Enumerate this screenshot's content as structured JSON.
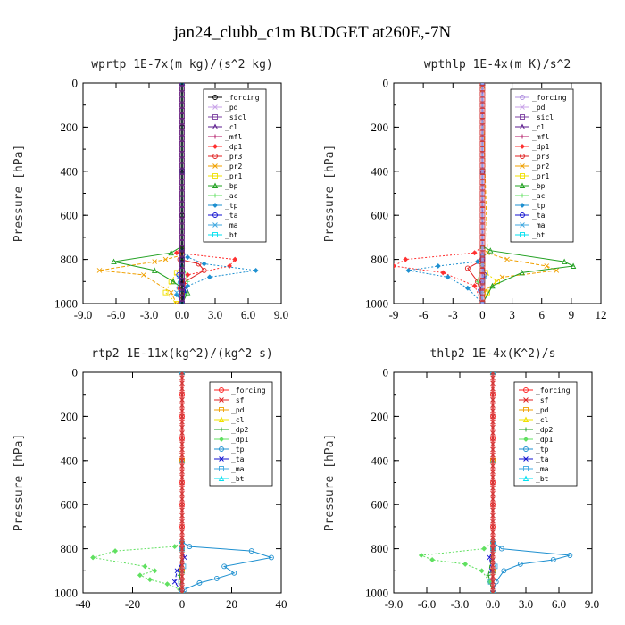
{
  "title": "jan24_clubb_c1m  BUDGET at260E,-7N",
  "chart_data": [
    {
      "type": "line",
      "title": "wprtp  1E-7x(m kg)/(s^2 kg)",
      "ylabel": "Pressure [hPa]",
      "xlim": [
        -9,
        9
      ],
      "ylim": [
        0,
        1000
      ],
      "xticks": [
        "-9.0",
        "-6.0",
        "-3.0",
        "0.0",
        "3.0",
        "6.0",
        "9.0"
      ],
      "yticks": [
        "0",
        "200",
        "400",
        "600",
        "800",
        "1000"
      ],
      "series": [
        {
          "name": "_forcing",
          "color": "#000000",
          "x": [
            0,
            0,
            0,
            0,
            0,
            0,
            0
          ],
          "y": [
            0,
            200,
            400,
            600,
            800,
            900,
            1000
          ]
        },
        {
          "name": "_pd",
          "color": "#c8a2e8",
          "x": [
            0,
            0,
            0,
            0,
            0
          ],
          "y": [
            0,
            400,
            800,
            900,
            1000
          ]
        },
        {
          "name": "_sicl",
          "color": "#7b3fa0",
          "x": [
            0,
            0,
            0,
            0,
            0
          ],
          "y": [
            0,
            400,
            800,
            900,
            1000
          ]
        },
        {
          "name": "_cl",
          "color": "#5a1a8c",
          "x": [
            0,
            0,
            0,
            0,
            0
          ],
          "y": [
            0,
            400,
            800,
            900,
            1000
          ]
        },
        {
          "name": "_mfl",
          "color": "#b01060",
          "x": [
            0,
            0,
            0,
            0,
            0
          ],
          "y": [
            0,
            400,
            800,
            900,
            1000
          ]
        },
        {
          "name": "_dp1",
          "color": "#ff3030",
          "x": [
            0,
            0,
            -0.5,
            4.8,
            4.3,
            0.5,
            -0.3,
            0
          ],
          "y": [
            0,
            740,
            770,
            800,
            830,
            870,
            930,
            1000
          ]
        },
        {
          "name": "_pr3",
          "color": "#e02020",
          "x": [
            0,
            0,
            -0.2,
            1.5,
            2.0,
            0.3,
            0
          ],
          "y": [
            0,
            760,
            800,
            820,
            850,
            900,
            1000
          ]
        },
        {
          "name": "_pr2",
          "color": "#f0a000",
          "x": [
            0,
            0,
            -1.5,
            -2.5,
            -7.5,
            -3.5,
            -1.0,
            -0.5
          ],
          "y": [
            0,
            780,
            800,
            810,
            850,
            870,
            950,
            1000
          ]
        },
        {
          "name": "_pr1",
          "color": "#f0e000",
          "x": [
            0,
            0,
            -0.5,
            -1.0,
            -1.5,
            -0.5
          ],
          "y": [
            0,
            820,
            860,
            900,
            950,
            1000
          ]
        },
        {
          "name": "_bp",
          "color": "#20a020",
          "x": [
            0,
            0,
            -1.0,
            -6.2,
            -2.5,
            -0.8,
            0.5,
            0
          ],
          "y": [
            0,
            740,
            770,
            810,
            850,
            900,
            950,
            1000
          ]
        },
        {
          "name": "_ac",
          "color": "#60e060",
          "x": [
            0,
            0,
            0.5,
            0.3,
            0
          ],
          "y": [
            0,
            800,
            900,
            950,
            1000
          ]
        },
        {
          "name": "_tp",
          "color": "#1e90d0",
          "x": [
            0,
            0,
            0.5,
            2.0,
            6.7,
            2.5,
            0.5,
            -0.5,
            0
          ],
          "y": [
            0,
            760,
            790,
            820,
            850,
            880,
            920,
            960,
            1000
          ]
        },
        {
          "name": "_ta",
          "color": "#1010d0",
          "x": [
            0,
            0,
            -0.3,
            0.3,
            0
          ],
          "y": [
            0,
            800,
            870,
            940,
            1000
          ]
        },
        {
          "name": "_ma",
          "color": "#40a8e0",
          "x": [
            0,
            0,
            -0.3,
            -0.5,
            0
          ],
          "y": [
            0,
            820,
            880,
            950,
            1000
          ]
        },
        {
          "name": "_bt",
          "color": "#00e0f0",
          "x": [
            0,
            0,
            0,
            0,
            0
          ],
          "y": [
            0,
            400,
            800,
            900,
            1000
          ]
        }
      ]
    },
    {
      "type": "line",
      "title": "wpthlp  1E-4x(m K)/s^2",
      "ylabel": "Pressure [hPa]",
      "xlim": [
        -9,
        12
      ],
      "ylim": [
        0,
        1000
      ],
      "xticks": [
        "-9",
        "-6",
        "-3",
        "0",
        "3",
        "6",
        "9",
        "12"
      ],
      "yticks": [
        "0",
        "200",
        "400",
        "600",
        "800",
        "1000"
      ],
      "series": [
        {
          "name": "_forcing",
          "color": "#b090e0",
          "x": [
            0,
            0,
            0,
            0,
            0
          ],
          "y": [
            0,
            400,
            800,
            900,
            1000
          ]
        },
        {
          "name": "_pd",
          "color": "#c8a2e8",
          "x": [
            0,
            0,
            0,
            0,
            0
          ],
          "y": [
            0,
            400,
            800,
            900,
            1000
          ]
        },
        {
          "name": "_sicl",
          "color": "#7b3fa0",
          "x": [
            0,
            0,
            0,
            0,
            0
          ],
          "y": [
            0,
            400,
            800,
            900,
            1000
          ]
        },
        {
          "name": "_cl",
          "color": "#5a1a8c",
          "x": [
            0,
            0,
            0,
            0,
            0
          ],
          "y": [
            0,
            400,
            800,
            900,
            1000
          ]
        },
        {
          "name": "_mfl",
          "color": "#b01060",
          "x": [
            0,
            0,
            0,
            0,
            0
          ],
          "y": [
            0,
            400,
            800,
            900,
            1000
          ]
        },
        {
          "name": "_dp1",
          "color": "#ff3030",
          "x": [
            0,
            0,
            -0.8,
            -7.8,
            -9.0,
            -4.0,
            -0.8,
            0
          ],
          "y": [
            0,
            740,
            770,
            800,
            830,
            860,
            920,
            1000
          ]
        },
        {
          "name": "_pr3",
          "color": "#e02020",
          "x": [
            0,
            0,
            -0.3,
            -1.5,
            -0.5,
            0
          ],
          "y": [
            0,
            780,
            810,
            840,
            900,
            1000
          ]
        },
        {
          "name": "_pr2",
          "color": "#f0a000",
          "x": [
            0,
            0,
            0.5,
            2.5,
            6.5,
            7.5,
            2.0,
            0.3,
            0
          ],
          "y": [
            0,
            30,
            770,
            800,
            830,
            850,
            880,
            940,
            1000
          ]
        },
        {
          "name": "_pr1",
          "color": "#f0e000",
          "x": [
            0,
            0,
            0.3,
            1.5,
            0.5,
            0
          ],
          "y": [
            0,
            820,
            860,
            900,
            950,
            1000
          ]
        },
        {
          "name": "_bp",
          "color": "#20a020",
          "x": [
            0,
            0,
            0.8,
            8.3,
            9.2,
            4.0,
            1.0,
            0
          ],
          "y": [
            0,
            740,
            760,
            810,
            830,
            860,
            920,
            1000
          ]
        },
        {
          "name": "_ac",
          "color": "#60e060",
          "x": [
            0,
            0,
            -0.5,
            0,
            0
          ],
          "y": [
            0,
            820,
            900,
            950,
            1000
          ]
        },
        {
          "name": "_tp",
          "color": "#1e90d0",
          "x": [
            0,
            0,
            -0.5,
            -4.5,
            -7.5,
            -3.5,
            -1.5,
            0
          ],
          "y": [
            0,
            780,
            810,
            830,
            850,
            880,
            930,
            1000
          ]
        },
        {
          "name": "_ta",
          "color": "#1010d0",
          "x": [
            0,
            0,
            0.2,
            -0.2,
            0
          ],
          "y": [
            0,
            800,
            870,
            940,
            1000
          ]
        },
        {
          "name": "_ma",
          "color": "#40a8e0",
          "x": [
            0,
            0,
            0.3,
            -0.2,
            0
          ],
          "y": [
            0,
            820,
            880,
            950,
            1000
          ]
        },
        {
          "name": "_bt",
          "color": "#00e0f0",
          "x": [
            0,
            0,
            0,
            0,
            0
          ],
          "y": [
            0,
            400,
            800,
            900,
            1000
          ]
        }
      ]
    },
    {
      "type": "line",
      "title": "rtp2  1E-11x(kg^2)/(kg^2 s)",
      "ylabel": "Pressure [hPa]",
      "xlim": [
        -40,
        40
      ],
      "ylim": [
        0,
        1000
      ],
      "xticks": [
        "-40",
        "-20",
        "0",
        "20",
        "40"
      ],
      "yticks": [
        "0",
        "200",
        "400",
        "600",
        "800",
        "1000"
      ],
      "series": [
        {
          "name": "_forcing",
          "color": "#ff2020",
          "x": [
            0,
            0,
            0,
            0,
            0,
            0,
            0,
            0,
            0,
            0,
            0
          ],
          "y": [
            0,
            100,
            200,
            300,
            400,
            500,
            600,
            700,
            800,
            900,
            1000
          ]
        },
        {
          "name": "_sf",
          "color": "#e02020",
          "x": [
            0,
            0,
            0,
            0,
            0,
            0,
            0,
            0,
            0,
            0,
            0
          ],
          "y": [
            0,
            100,
            200,
            300,
            400,
            500,
            600,
            700,
            800,
            900,
            1000
          ]
        },
        {
          "name": "_pd",
          "color": "#f0a000",
          "x": [
            0,
            0,
            0,
            0,
            0
          ],
          "y": [
            0,
            400,
            800,
            900,
            1000
          ]
        },
        {
          "name": "_cl",
          "color": "#f0e000",
          "x": [
            0,
            0,
            0,
            0,
            0
          ],
          "y": [
            0,
            400,
            800,
            900,
            1000
          ]
        },
        {
          "name": "_dp2",
          "color": "#20a020",
          "x": [
            0,
            0,
            -0.5,
            -1.0,
            -0.5,
            0
          ],
          "y": [
            0,
            800,
            860,
            920,
            960,
            1000
          ]
        },
        {
          "name": "_dp1",
          "color": "#60e060",
          "x": [
            0,
            0,
            -3,
            -27,
            -36,
            -15,
            -11,
            -17,
            -13,
            -6,
            -1,
            0
          ],
          "y": [
            0,
            770,
            790,
            810,
            840,
            880,
            900,
            920,
            940,
            960,
            985,
            1000
          ]
        },
        {
          "name": "_tp",
          "color": "#1e90d0",
          "x": [
            0,
            0,
            3,
            28,
            36,
            17,
            21,
            14,
            7,
            1,
            0
          ],
          "y": [
            0,
            770,
            790,
            810,
            840,
            880,
            910,
            935,
            955,
            985,
            1000
          ]
        },
        {
          "name": "_ta",
          "color": "#1010d0",
          "x": [
            0,
            0,
            1,
            -2,
            -3,
            0
          ],
          "y": [
            0,
            800,
            840,
            900,
            950,
            1000
          ]
        },
        {
          "name": "_ma",
          "color": "#40a8e0",
          "x": [
            0,
            0,
            0.5,
            -0.5,
            0
          ],
          "y": [
            0,
            800,
            880,
            950,
            1000
          ]
        },
        {
          "name": "_bt",
          "color": "#00e0f0",
          "x": [
            0,
            0,
            0,
            0,
            0
          ],
          "y": [
            0,
            400,
            800,
            900,
            1000
          ]
        }
      ]
    },
    {
      "type": "line",
      "title": "thlp2  1E-4x(K^2)/s",
      "ylabel": "Pressure [hPa]",
      "xlim": [
        -9,
        9
      ],
      "ylim": [
        0,
        1000
      ],
      "xticks": [
        "-9.0",
        "-6.0",
        "-3.0",
        "0.0",
        "3.0",
        "6.0",
        "9.0"
      ],
      "yticks": [
        "0",
        "200",
        "400",
        "600",
        "800",
        "1000"
      ],
      "series": [
        {
          "name": "_forcing",
          "color": "#ff2020",
          "x": [
            0,
            0,
            0,
            0,
            0,
            0,
            0,
            0,
            0,
            0,
            0
          ],
          "y": [
            0,
            100,
            200,
            300,
            400,
            500,
            600,
            700,
            800,
            900,
            1000
          ]
        },
        {
          "name": "_sf",
          "color": "#e02020",
          "x": [
            0,
            0,
            0,
            0,
            0,
            0,
            0,
            0,
            0,
            0,
            0
          ],
          "y": [
            0,
            100,
            200,
            300,
            400,
            500,
            600,
            700,
            800,
            900,
            1000
          ]
        },
        {
          "name": "_pd",
          "color": "#f0a000",
          "x": [
            0,
            0,
            0,
            0,
            0
          ],
          "y": [
            0,
            400,
            800,
            900,
            1000
          ]
        },
        {
          "name": "_cl",
          "color": "#f0e000",
          "x": [
            0,
            0,
            0,
            0,
            0
          ],
          "y": [
            0,
            400,
            800,
            900,
            1000
          ]
        },
        {
          "name": "_dp2",
          "color": "#20a020",
          "x": [
            0,
            0,
            -0.2,
            -0.4,
            -0.2,
            0
          ],
          "y": [
            0,
            800,
            860,
            920,
            960,
            1000
          ]
        },
        {
          "name": "_dp1",
          "color": "#60e060",
          "x": [
            0,
            0,
            -0.8,
            -6.5,
            -5.5,
            -2.5,
            -1.0,
            -0.3,
            0
          ],
          "y": [
            0,
            770,
            800,
            830,
            850,
            870,
            900,
            950,
            1000
          ]
        },
        {
          "name": "_tp",
          "color": "#1e90d0",
          "x": [
            0,
            0,
            0.8,
            7.0,
            5.5,
            2.5,
            1.0,
            0.3,
            0
          ],
          "y": [
            0,
            770,
            800,
            830,
            850,
            870,
            900,
            950,
            1000
          ]
        },
        {
          "name": "_ta",
          "color": "#1010d0",
          "x": [
            0,
            0,
            -0.3,
            -0.1,
            0
          ],
          "y": [
            0,
            800,
            840,
            900,
            1000
          ]
        },
        {
          "name": "_ma",
          "color": "#40a8e0",
          "x": [
            0,
            0,
            0.2,
            -0.2,
            0
          ],
          "y": [
            0,
            800,
            880,
            950,
            1000
          ]
        },
        {
          "name": "_bt",
          "color": "#00e0f0",
          "x": [
            0,
            0,
            0,
            0,
            0
          ],
          "y": [
            0,
            400,
            800,
            900,
            1000
          ]
        }
      ]
    }
  ]
}
